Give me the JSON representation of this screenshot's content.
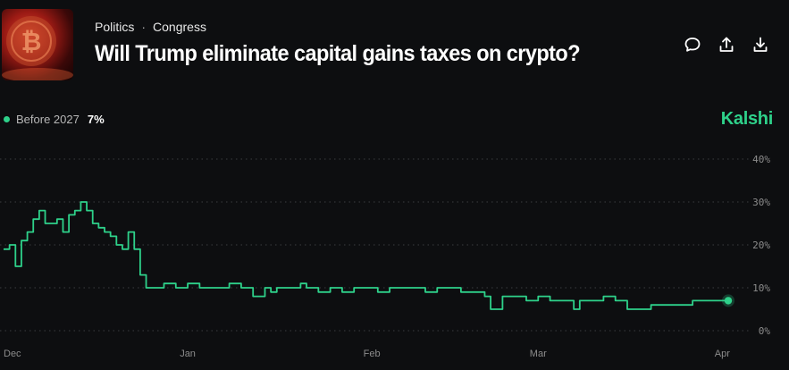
{
  "header": {
    "breadcrumb": [
      "Politics",
      "Congress"
    ],
    "breadcrumb_separator": "·",
    "title": "Will Trump eliminate capital gains taxes on crypto?"
  },
  "actions": [
    {
      "icon": "comment-icon"
    },
    {
      "icon": "share-icon"
    },
    {
      "icon": "download-icon"
    }
  ],
  "legend": {
    "label": "Before 2027",
    "value": "7%",
    "color": "#2ed18a"
  },
  "brand": "Kalshi",
  "chart_data": {
    "type": "line",
    "x_unit": "date",
    "x": [
      "2024-12-01",
      "2024-12-02",
      "2024-12-03",
      "2024-12-04",
      "2024-12-05",
      "2024-12-06",
      "2024-12-07",
      "2024-12-08",
      "2024-12-09",
      "2024-12-10",
      "2024-12-11",
      "2024-12-12",
      "2024-12-13",
      "2024-12-14",
      "2024-12-15",
      "2024-12-16",
      "2024-12-17",
      "2024-12-18",
      "2024-12-19",
      "2024-12-20",
      "2024-12-21",
      "2024-12-22",
      "2024-12-23",
      "2024-12-24",
      "2024-12-25",
      "2024-12-26",
      "2024-12-28",
      "2024-12-30",
      "2025-01-01",
      "2025-01-03",
      "2025-01-05",
      "2025-01-08",
      "2025-01-10",
      "2025-01-12",
      "2025-01-14",
      "2025-01-15",
      "2025-01-16",
      "2025-01-18",
      "2025-01-20",
      "2025-01-21",
      "2025-01-23",
      "2025-01-25",
      "2025-01-27",
      "2025-01-29",
      "2025-01-31",
      "2025-02-02",
      "2025-02-04",
      "2025-02-06",
      "2025-02-08",
      "2025-02-10",
      "2025-02-12",
      "2025-02-14",
      "2025-02-16",
      "2025-02-18",
      "2025-02-20",
      "2025-02-21",
      "2025-02-23",
      "2025-02-25",
      "2025-02-27",
      "2025-03-01",
      "2025-03-03",
      "2025-03-05",
      "2025-03-07",
      "2025-03-08",
      "2025-03-10",
      "2025-03-12",
      "2025-03-14",
      "2025-03-16",
      "2025-03-18",
      "2025-03-20",
      "2025-03-22",
      "2025-03-24",
      "2025-03-25",
      "2025-03-27",
      "2025-03-29",
      "2025-03-31",
      "2025-04-01",
      "2025-04-02"
    ],
    "series": [
      {
        "color": "#2ed18a",
        "values": [
          19,
          20,
          15,
          21,
          23,
          26,
          28,
          25,
          25,
          26,
          23,
          27,
          28,
          30,
          28,
          25,
          24,
          23,
          22,
          20,
          19,
          23,
          19,
          13,
          10,
          10,
          11,
          10,
          11,
          10,
          10,
          11,
          10,
          8,
          10,
          9,
          10,
          10,
          11,
          10,
          9,
          10,
          9,
          10,
          10,
          9,
          10,
          10,
          10,
          9,
          10,
          10,
          9,
          9,
          8,
          5,
          8,
          8,
          7,
          8,
          7,
          7,
          5,
          7,
          7,
          8,
          7,
          5,
          5,
          6,
          6,
          6,
          6,
          7,
          7,
          7,
          7,
          7
        ]
      }
    ],
    "last_value": 7,
    "x_ticks": [
      {
        "date": "2024-12-01",
        "label": "Dec"
      },
      {
        "date": "2025-01-01",
        "label": "Jan"
      },
      {
        "date": "2025-02-01",
        "label": "Feb"
      },
      {
        "date": "2025-03-01",
        "label": "Mar"
      },
      {
        "date": "2025-04-01",
        "label": "Apr"
      }
    ],
    "y_ticks": [
      {
        "value": 40,
        "label": "40%"
      },
      {
        "value": 30,
        "label": "30%"
      },
      {
        "value": 20,
        "label": "20%"
      },
      {
        "value": 10,
        "label": "10%"
      },
      {
        "value": 0,
        "label": "0%"
      }
    ],
    "ylim": [
      0,
      40
    ],
    "xlim": [
      "2024-12-01",
      "2025-04-02"
    ],
    "grid": true,
    "grid_style": "dotted"
  }
}
